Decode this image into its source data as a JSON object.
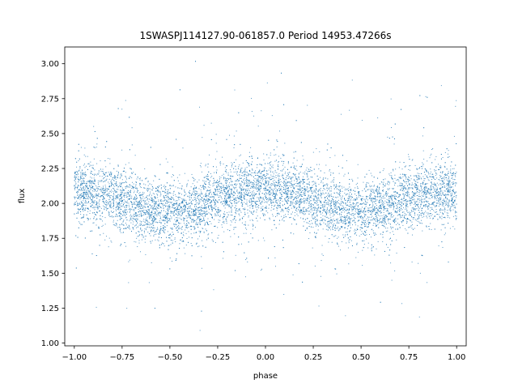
{
  "chart_data": {
    "type": "scatter",
    "title": "1SWASPJ114127.90-061857.0 Period 14953.47266s",
    "xlabel": "phase",
    "ylabel": "flux",
    "xlim": [
      -1.05,
      1.05
    ],
    "ylim": [
      0.98,
      3.12
    ],
    "xticks": [
      -1.0,
      -0.75,
      -0.5,
      -0.25,
      0.0,
      0.25,
      0.5,
      0.75,
      1.0
    ],
    "xtick_labels": [
      "−1.00",
      "−0.75",
      "−0.50",
      "−0.25",
      "0.00",
      "0.25",
      "0.50",
      "0.75",
      "1.00"
    ],
    "yticks": [
      1.0,
      1.25,
      1.5,
      1.75,
      2.0,
      2.25,
      2.5,
      2.75,
      3.0
    ],
    "ytick_labels": [
      "1.00",
      "1.25",
      "1.50",
      "1.75",
      "2.00",
      "2.25",
      "2.50",
      "2.75",
      "3.00"
    ],
    "grid": false,
    "marker_color": "#1f77b4",
    "series": [
      {
        "description_points": "phase-folded light curve, two cycles; mean flux ~2.08 at phase 0, ±1, minima ~1.93 near phase ±0.5",
        "phase": [
          -1.0,
          -0.9,
          -0.8,
          -0.7,
          -0.6,
          -0.5,
          -0.4,
          -0.3,
          -0.2,
          -0.1,
          0.0,
          0.1,
          0.2,
          0.3,
          0.4,
          0.5,
          0.6,
          0.7,
          0.8,
          0.9,
          1.0
        ],
        "flux": [
          2.09,
          2.08,
          2.05,
          2.0,
          1.95,
          1.93,
          1.95,
          2.01,
          2.06,
          2.09,
          2.09,
          2.08,
          2.05,
          2.0,
          1.95,
          1.93,
          1.95,
          2.01,
          2.06,
          2.09,
          2.09
        ]
      }
    ]
  }
}
